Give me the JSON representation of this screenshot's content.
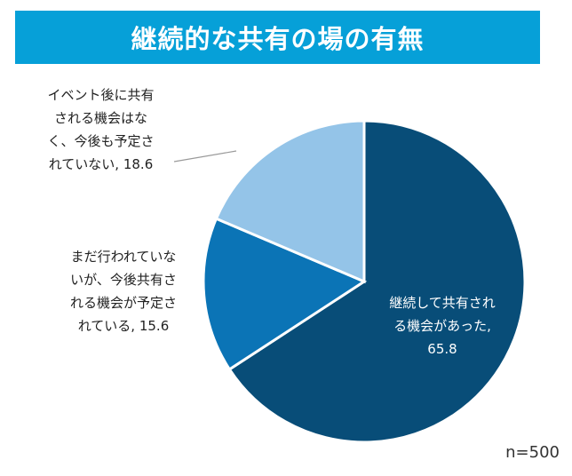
{
  "title": "継続的な共有の場の有無",
  "note": "n=500",
  "colors": {
    "title_bg": "#06a0d8",
    "slice_1": "#084d78",
    "slice_2": "#0b74b6",
    "slice_3": "#94c4e8",
    "leader": "#9a9a9a"
  },
  "chart_data": {
    "type": "pie",
    "title": "継続的な共有の場の有無",
    "start": "12 o'clock, clockwise",
    "slices": [
      {
        "label": "継続して共有される機会があった",
        "value": 65.8,
        "label_lines": [
          "継続して共有され",
          "る機会があった,",
          "65.8"
        ]
      },
      {
        "label": "まだ行われていないが、今後共有される機会が予定されている",
        "value": 15.6,
        "label_lines": [
          "まだ行われていな",
          "いが、今後共有さ",
          "れる機会が予定さ",
          "れている, 15.6"
        ]
      },
      {
        "label": "イベント後に共有される機会はなく、今後も予定されていない",
        "value": 18.6,
        "label_lines": [
          "イベント後に共有",
          "される機会はな",
          "く、今後も予定さ",
          "れていない, 18.6"
        ]
      }
    ]
  }
}
